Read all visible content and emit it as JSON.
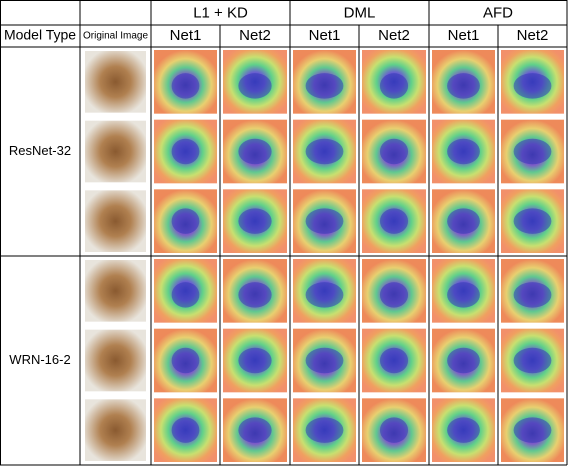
{
  "table": {
    "group_headers": [
      "L1 + KD",
      "DML",
      "AFD"
    ],
    "row_header": "Model Type",
    "image_header": "Original Image",
    "net_headers": [
      "Net1",
      "Net2",
      "Net1",
      "Net2",
      "Net1",
      "Net2"
    ],
    "row_groups": [
      "ResNet-32",
      "WRN-16-2"
    ]
  }
}
